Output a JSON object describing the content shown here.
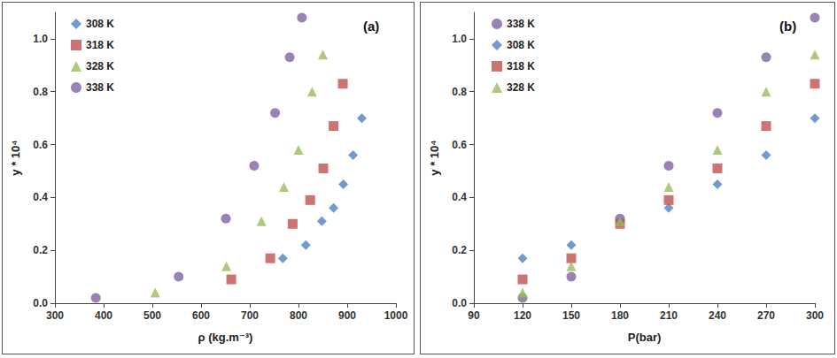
{
  "chart_data": [
    {
      "type": "scatter",
      "annotation": "(a)",
      "x_label": "ρ (kg.m⁻³)",
      "y_label": "y * 10⁴",
      "xlim": [
        300,
        1000
      ],
      "xticks": [
        300,
        400,
        500,
        600,
        700,
        800,
        900,
        1000
      ],
      "ylim": [
        0,
        1.1
      ],
      "yticks": [
        {
          "value": 0,
          "label": "0.0"
        },
        0.2,
        0.4,
        0.6,
        0.8,
        {
          "value": 1,
          "label": "1.0"
        }
      ],
      "grid": false,
      "legend": "top-left",
      "series": [
        {
          "name": "308 K",
          "color": "#4f81bd",
          "marker": "diamond",
          "x": [
            768,
            815,
            848,
            872,
            892,
            912,
            930
          ],
          "values": [
            0.17,
            0.22,
            0.31,
            0.36,
            0.45,
            0.56,
            0.7
          ]
        },
        {
          "name": "318 K",
          "color": "#c0504d",
          "marker": "square",
          "x": [
            662,
            742,
            788,
            824,
            851,
            872,
            891
          ],
          "values": [
            0.09,
            0.17,
            0.3,
            0.39,
            0.51,
            0.67,
            0.83
          ]
        },
        {
          "name": "328 K",
          "color": "#9bbb59",
          "marker": "triangle",
          "x": [
            506,
            652,
            724,
            770,
            800,
            828,
            850
          ],
          "values": [
            0.04,
            0.14,
            0.31,
            0.44,
            0.58,
            0.8,
            0.94
          ]
        },
        {
          "name": "338 K",
          "color": "#8064a2",
          "marker": "circle",
          "x": [
            384,
            554,
            651,
            709,
            752,
            782,
            807
          ],
          "values": [
            0.02,
            0.1,
            0.32,
            0.52,
            0.72,
            0.93,
            1.08
          ]
        }
      ]
    },
    {
      "type": "scatter",
      "annotation": "(b)",
      "x_label": "P(bar)",
      "y_label": "y * 10⁴",
      "xlim": [
        90,
        300
      ],
      "xticks": [
        90,
        120,
        150,
        180,
        210,
        240,
        270,
        300
      ],
      "ylim": [
        0,
        1.1
      ],
      "yticks": [
        {
          "value": 0,
          "label": "0.0"
        },
        0.2,
        0.4,
        0.6,
        0.8,
        {
          "value": 1,
          "label": "1.0"
        }
      ],
      "grid": false,
      "legend": "top-left",
      "series": [
        {
          "name": "338 K",
          "color": "#8064a2",
          "marker": "circle",
          "x": [
            120,
            150,
            180,
            210,
            240,
            270,
            300
          ],
          "values": [
            0.02,
            0.1,
            0.32,
            0.52,
            0.72,
            0.93,
            1.08
          ]
        },
        {
          "name": "308 K",
          "color": "#4f81bd",
          "marker": "diamond",
          "x": [
            120,
            150,
            180,
            210,
            240,
            270,
            300
          ],
          "values": [
            0.17,
            0.22,
            0.31,
            0.36,
            0.45,
            0.56,
            0.7
          ]
        },
        {
          "name": "318 K",
          "color": "#c0504d",
          "marker": "square",
          "x": [
            120,
            150,
            180,
            210,
            240,
            270,
            300
          ],
          "values": [
            0.09,
            0.17,
            0.3,
            0.39,
            0.51,
            0.67,
            0.83
          ]
        },
        {
          "name": "328 K",
          "color": "#9bbb59",
          "marker": "triangle",
          "x": [
            120,
            150,
            180,
            210,
            240,
            270,
            300
          ],
          "values": [
            0.04,
            0.14,
            0.31,
            0.44,
            0.58,
            0.8,
            0.94
          ]
        }
      ]
    }
  ]
}
